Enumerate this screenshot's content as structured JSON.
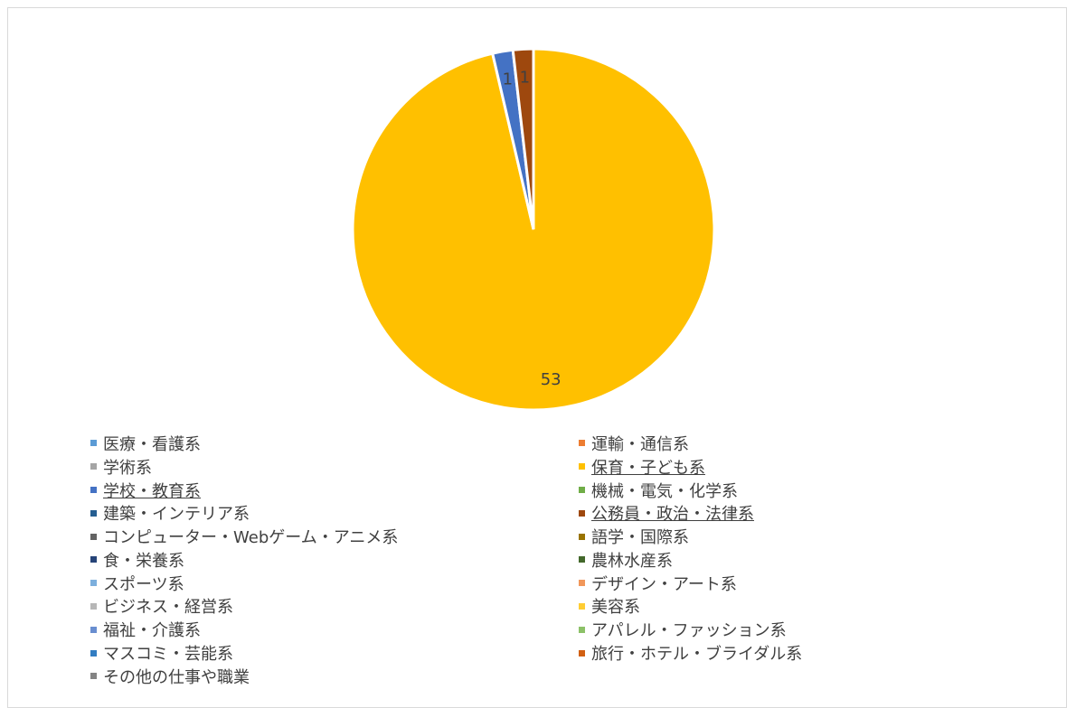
{
  "chart_data": {
    "type": "pie",
    "title": "",
    "slices": [
      {
        "label": "医療・看護系",
        "value": 0,
        "color": "#5B9BD5",
        "underline": false
      },
      {
        "label": "運輸・通信系",
        "value": 0,
        "color": "#ED7D31",
        "underline": false
      },
      {
        "label": "学術系",
        "value": 0,
        "color": "#A5A5A5",
        "underline": false
      },
      {
        "label": "保育・子ども系",
        "value": 53,
        "color": "#FFC000",
        "underline": true
      },
      {
        "label": "学校・教育系",
        "value": 1,
        "color": "#4472C4",
        "underline": true
      },
      {
        "label": "機械・電気・化学系",
        "value": 0,
        "color": "#70AD47",
        "underline": false
      },
      {
        "label": "建築・インテリア系",
        "value": 0,
        "color": "#255E91",
        "underline": false
      },
      {
        "label": "公務員・政治・法律系",
        "value": 1,
        "color": "#9E480E",
        "underline": true
      },
      {
        "label": "コンピューター・Webゲーム・アニメ系",
        "value": 0,
        "color": "#636363",
        "underline": false
      },
      {
        "label": "語学・国際系",
        "value": 0,
        "color": "#997300",
        "underline": false
      },
      {
        "label": "食・栄養系",
        "value": 0,
        "color": "#264478",
        "underline": false
      },
      {
        "label": "農林水産系",
        "value": 0,
        "color": "#43682B",
        "underline": false
      },
      {
        "label": "スポーツ系",
        "value": 0,
        "color": "#7CAFDD",
        "underline": false
      },
      {
        "label": "デザイン・アート系",
        "value": 0,
        "color": "#F1975A",
        "underline": false
      },
      {
        "label": "ビジネス・経営系",
        "value": 0,
        "color": "#B7B7B7",
        "underline": false
      },
      {
        "label": "美容系",
        "value": 0,
        "color": "#FFCD33",
        "underline": false
      },
      {
        "label": "福祉・介護系",
        "value": 0,
        "color": "#698ED0",
        "underline": false
      },
      {
        "label": "アパレル・ファッション系",
        "value": 0,
        "color": "#8CC168",
        "underline": false
      },
      {
        "label": "マスコミ・芸能系",
        "value": 0,
        "color": "#327DC2",
        "underline": false
      },
      {
        "label": "旅行・ホテル・ブライダル系",
        "value": 0,
        "color": "#D26012",
        "underline": false
      },
      {
        "label": "その他の仕事や職業",
        "value": 0,
        "color": "#848484",
        "underline": false
      }
    ],
    "start_angle_deg": 0,
    "direction": "clockwise",
    "legend_position": "bottom",
    "data_labels": true
  }
}
